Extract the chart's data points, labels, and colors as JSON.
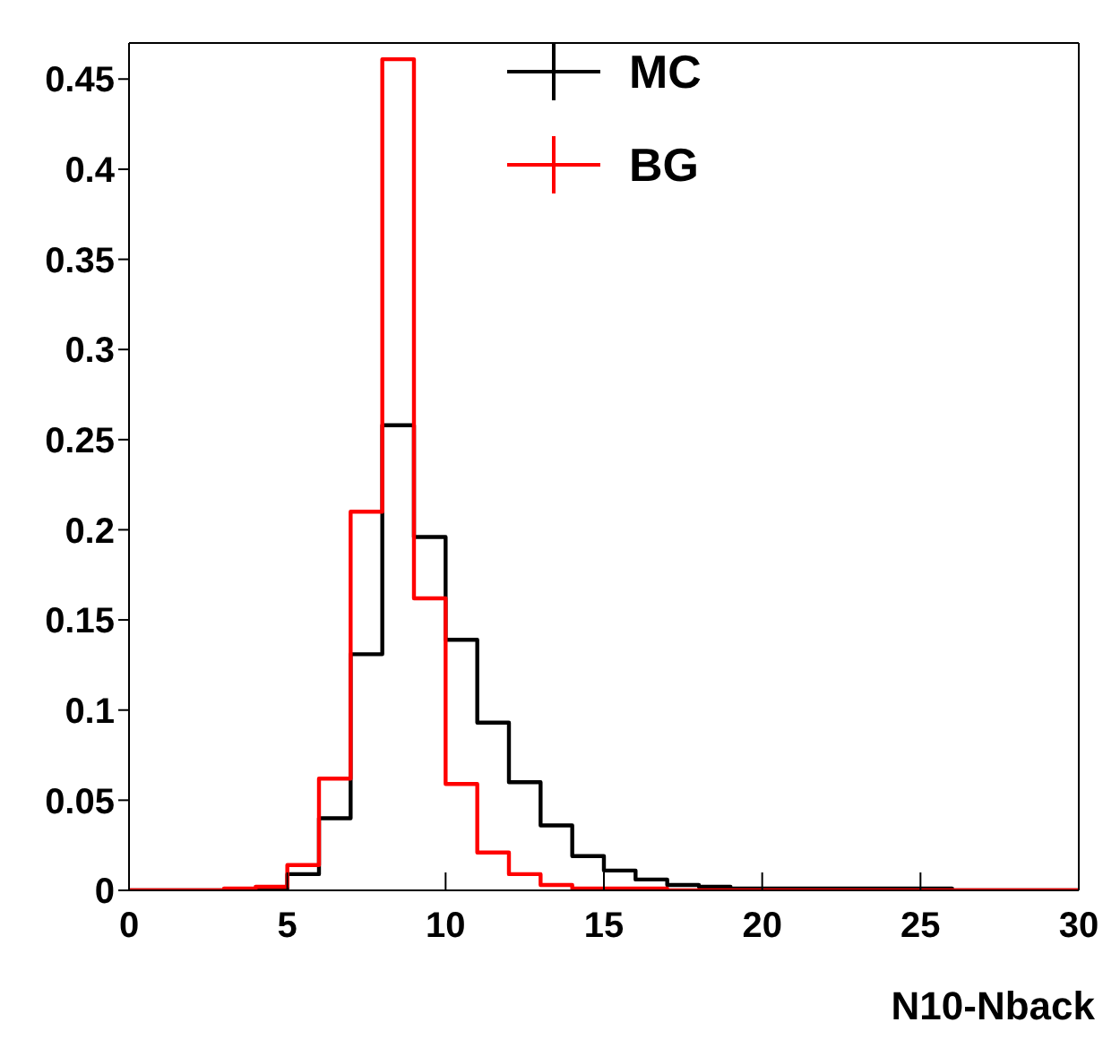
{
  "chart_data": {
    "type": "histogram",
    "xlabel": "N10-Nback",
    "bins": [
      0,
      1,
      2,
      3,
      4,
      5,
      6,
      7,
      8,
      9,
      10,
      11,
      12,
      13,
      14,
      15,
      16,
      17,
      18,
      19,
      20,
      21,
      22,
      23,
      24,
      25,
      26,
      27,
      28,
      29,
      30
    ],
    "series": [
      {
        "name": "MC",
        "color": "#000000",
        "values": [
          0,
          0,
          0,
          0,
          0.001,
          0.009,
          0.04,
          0.131,
          0.258,
          0.196,
          0.139,
          0.093,
          0.06,
          0.036,
          0.019,
          0.011,
          0.006,
          0.003,
          0.002,
          0.001,
          0.001,
          0.001,
          0.001,
          0.001,
          0.001,
          0.001,
          0,
          0,
          0,
          0
        ]
      },
      {
        "name": "BG",
        "color": "#ff0000",
        "values": [
          0,
          0,
          0,
          0.001,
          0.002,
          0.014,
          0.062,
          0.21,
          0.461,
          0.162,
          0.059,
          0.021,
          0.009,
          0.003,
          0.001,
          0.001,
          0.001,
          0,
          0,
          0,
          0,
          0,
          0,
          0,
          0,
          0,
          0,
          0,
          0,
          0
        ]
      }
    ],
    "xlim": [
      0,
      30
    ],
    "xticks": [
      0,
      5,
      10,
      15,
      20,
      25,
      30
    ],
    "ylim": [
      0,
      0.47
    ],
    "yticks": [
      0,
      0.05,
      0.1,
      0.15,
      0.2,
      0.25,
      0.3,
      0.35,
      0.4,
      0.45
    ],
    "legend": "top",
    "grid": false
  }
}
